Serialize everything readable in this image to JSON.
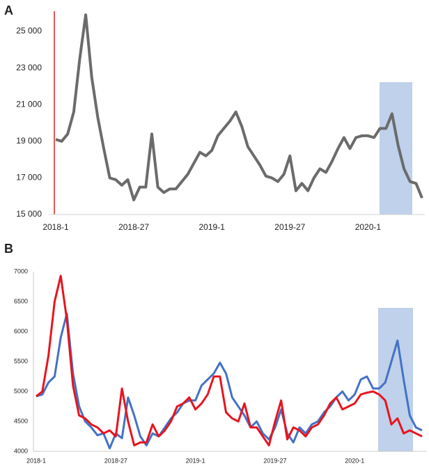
{
  "chart_data": [
    {
      "type": "line",
      "title": "A",
      "categories": [
        "2018-1",
        null,
        null,
        null,
        null,
        null,
        null,
        null,
        null,
        null,
        null,
        null,
        null,
        "2018-27",
        null,
        null,
        null,
        null,
        null,
        null,
        null,
        null,
        null,
        null,
        null,
        null,
        "2019-1",
        null,
        null,
        null,
        null,
        null,
        null,
        null,
        null,
        null,
        null,
        null,
        null,
        "2019-27",
        null,
        null,
        null,
        null,
        null,
        null,
        null,
        null,
        null,
        null,
        null,
        null,
        "2020-1",
        null,
        null,
        null,
        null,
        null,
        null,
        null,
        null,
        null
      ],
      "series": [
        {
          "color": "#6b6b6b",
          "values": [
            19100,
            19000,
            19400,
            20600,
            23500,
            25900,
            22500,
            20300,
            18600,
            17000,
            16900,
            16600,
            16900,
            15800,
            16500,
            16500,
            19400,
            16500,
            16200,
            16400,
            16400,
            16800,
            17200,
            17800,
            18400,
            18200,
            18500,
            19300,
            19700,
            20100,
            20600,
            19800,
            18700,
            18200,
            17700,
            17100,
            17000,
            16800,
            17200,
            18200,
            16300,
            16700,
            16300,
            17000,
            17500,
            17300,
            17900,
            18600,
            19200,
            18600,
            19200,
            19300,
            19300,
            19200,
            19700,
            19700,
            20500,
            18800,
            17500,
            16800,
            16700,
            15900
          ]
        }
      ],
      "ylim": [
        15000,
        26000
      ],
      "yticks": [
        {
          "value": 15000,
          "label": "15 000"
        },
        {
          "value": 17000,
          "label": "17 000"
        },
        {
          "value": 19000,
          "label": "19 000"
        },
        {
          "value": 21000,
          "label": "21 000"
        },
        {
          "value": 23000,
          "label": "23 000"
        },
        {
          "value": 25000,
          "label": "25 000"
        }
      ]
    },
    {
      "type": "line",
      "title": "B",
      "categories": [
        "2018-1",
        null,
        null,
        null,
        null,
        null,
        null,
        null,
        null,
        null,
        null,
        null,
        null,
        "2018-27",
        null,
        null,
        null,
        null,
        null,
        null,
        null,
        null,
        null,
        null,
        null,
        null,
        "2019-1",
        null,
        null,
        null,
        null,
        null,
        null,
        null,
        null,
        null,
        null,
        null,
        null,
        "2019-27",
        null,
        null,
        null,
        null,
        null,
        null,
        null,
        null,
        null,
        null,
        null,
        null,
        "2020-1",
        null,
        null,
        null,
        null,
        null,
        null,
        null,
        null,
        null,
        null,
        null
      ],
      "series": [
        {
          "color": "#4472c4",
          "values": [
            4920,
            4950,
            5150,
            5250,
            5900,
            6300,
            5300,
            4750,
            4500,
            4400,
            4270,
            4300,
            4050,
            4300,
            4220,
            4900,
            4600,
            4250,
            4100,
            4300,
            4250,
            4400,
            4550,
            4650,
            4800,
            4850,
            4850,
            5100,
            5200,
            5300,
            5480,
            5300,
            4900,
            4750,
            4600,
            4400,
            4500,
            4300,
            4200,
            4400,
            4700,
            4300,
            4150,
            4400,
            4300,
            4450,
            4500,
            4650,
            4750,
            4900,
            5000,
            4850,
            4950,
            5200,
            5250,
            5050,
            5050,
            5150,
            5500,
            5850,
            5200,
            4600,
            4400,
            4350
          ]
        },
        {
          "color": "#e8141e",
          "values": [
            4920,
            5000,
            5600,
            6500,
            6930,
            6200,
            5100,
            4600,
            4550,
            4450,
            4400,
            4300,
            4350,
            4250,
            5050,
            4500,
            4100,
            4150,
            4150,
            4450,
            4250,
            4350,
            4500,
            4750,
            4800,
            4900,
            4700,
            4800,
            4950,
            5250,
            5250,
            4650,
            4550,
            4500,
            4800,
            4400,
            4400,
            4250,
            4100,
            4500,
            4850,
            4200,
            4400,
            4350,
            4250,
            4400,
            4450,
            4600,
            4800,
            4900,
            4700,
            4750,
            4800,
            4950,
            4980,
            5000,
            4950,
            4850,
            4450,
            4550,
            4300,
            4350,
            4300,
            4250
          ]
        }
      ],
      "ylim": [
        4000,
        7000
      ],
      "yticks": [
        4000,
        4500,
        5000,
        5500,
        6000,
        6500,
        7000
      ]
    }
  ]
}
